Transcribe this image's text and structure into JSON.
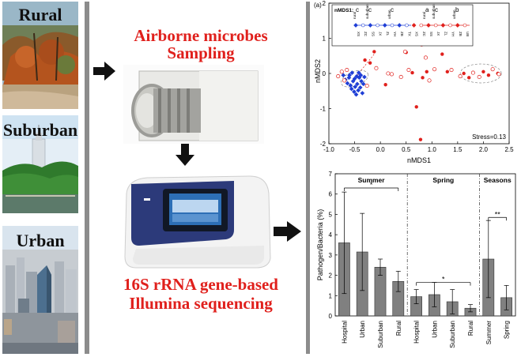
{
  "left": {
    "rural": "Rural",
    "suburban": "Suburban",
    "urban": "Urban"
  },
  "middle": {
    "sampling_line1": "Airborne microbes",
    "sampling_line2": "Sampling",
    "seq_line1": "16S rRNA gene-based",
    "seq_line2": "Illumina sequencing"
  },
  "colors": {
    "accent_red": "#e0201c",
    "blue": "#1f3fd6",
    "bar_grey": "#808080"
  },
  "chart_data": [
    {
      "type": "scatter",
      "panel_label": "(a)",
      "xlabel": "nMDS1",
      "ylabel": "nMDS2",
      "xlim": [
        -1.0,
        2.5
      ],
      "ylim": [
        -2,
        2
      ],
      "xticks": [
        "-1.0",
        "-0.5",
        "0.0",
        "0.5",
        "1.0",
        "1.5",
        "2.0",
        "2.5"
      ],
      "yticks": [
        "2",
        "1",
        "0",
        "-1",
        "-2"
      ],
      "annotation": "Stress=0.13",
      "legend_title": "nMDS1:",
      "legend_letters": [
        "c",
        "c",
        "c",
        "a",
        "c",
        "b"
      ],
      "legend_groups": [
        "rural",
        "suburban",
        "urban",
        "rural",
        "suburban",
        "urban"
      ],
      "legend_codes": [
        "XS",
        "ZC",
        "SS",
        "JX",
        "ZL",
        "YH",
        "ZB",
        "TX",
        "XS",
        "ZC",
        "SS",
        "JX",
        "ZL",
        "YH",
        "ZB",
        "UB"
      ],
      "series": [
        {
          "marker": "blue",
          "points": [
            [
              -0.72,
              -0.05
            ],
            [
              -0.68,
              -0.18
            ],
            [
              -0.64,
              -0.28
            ],
            [
              -0.61,
              -0.12
            ],
            [
              -0.58,
              -0.34
            ],
            [
              -0.56,
              -0.44
            ],
            [
              -0.53,
              -0.22
            ],
            [
              -0.51,
              -0.52
            ],
            [
              -0.49,
              -0.38
            ],
            [
              -0.47,
              -0.6
            ],
            [
              -0.45,
              -0.3
            ],
            [
              -0.43,
              -0.48
            ],
            [
              -0.41,
              -0.12
            ],
            [
              -0.39,
              -0.4
            ],
            [
              -0.37,
              -0.22
            ],
            [
              -0.35,
              -0.56
            ],
            [
              -0.33,
              -0.3
            ],
            [
              -0.31,
              -0.1
            ],
            [
              -0.6,
              -0.05
            ],
            [
              -0.5,
              -0.15
            ],
            [
              -0.46,
              -0.08
            ],
            [
              -0.42,
              0.02
            ],
            [
              -0.55,
              0.02
            ],
            [
              -0.38,
              -0.05
            ]
          ]
        },
        {
          "marker": "red",
          "points": [
            [
              -0.3,
              0.38
            ],
            [
              -0.2,
              0.3
            ],
            [
              -0.12,
              0.62
            ],
            [
              0.1,
              -0.32
            ],
            [
              0.5,
              0.6
            ],
            [
              0.72,
              1.18
            ],
            [
              0.8,
              0.82
            ],
            [
              0.62,
              0.02
            ],
            [
              0.82,
              -0.12
            ],
            [
              0.9,
              0.05
            ],
            [
              0.7,
              -0.95
            ],
            [
              0.78,
              -1.88
            ],
            [
              1.2,
              0.55
            ],
            [
              1.3,
              0.05
            ],
            [
              1.62,
              0.0
            ],
            [
              1.72,
              -0.12
            ],
            [
              2.0,
              0.05
            ],
            [
              2.1,
              -0.05
            ],
            [
              2.28,
              0.0
            ]
          ]
        },
        {
          "marker": "white",
          "points": [
            [
              -0.82,
              -0.08
            ],
            [
              -0.75,
              0.05
            ],
            [
              -0.7,
              -0.2
            ],
            [
              -0.65,
              0.1
            ],
            [
              -0.26,
              -0.35
            ],
            [
              -0.08,
              0.15
            ],
            [
              0.15,
              0.0
            ],
            [
              0.22,
              -0.02
            ],
            [
              0.4,
              -0.1
            ],
            [
              0.48,
              0.62
            ],
            [
              0.55,
              0.1
            ],
            [
              0.88,
              0.45
            ],
            [
              0.95,
              -0.2
            ],
            [
              1.05,
              0.12
            ],
            [
              1.38,
              0.1
            ],
            [
              1.55,
              -0.08
            ],
            [
              1.8,
              0.02
            ],
            [
              1.92,
              -0.1
            ],
            [
              2.18,
              0.12
            ],
            [
              2.3,
              -0.02
            ]
          ]
        }
      ]
    },
    {
      "type": "bar",
      "ylabel": "Pathogen/Bacteria (%)",
      "ylim": [
        0,
        7
      ],
      "yticks": [
        "0",
        "1",
        "2",
        "3",
        "4",
        "5",
        "6",
        "7"
      ],
      "categories": [
        "Hospital",
        "Urban",
        "Suburban",
        "Rural",
        "Hospital",
        "Urban",
        "Suburban",
        "Rural",
        "Summer",
        "Spring"
      ],
      "values": [
        3.6,
        3.15,
        2.4,
        1.7,
        0.95,
        1.05,
        0.7,
        0.38,
        2.8,
        0.9
      ],
      "errors": [
        2.5,
        1.9,
        0.4,
        0.5,
        0.35,
        0.6,
        0.6,
        0.18,
        1.9,
        0.6
      ],
      "groups": [
        {
          "label": "Summer",
          "start": 0,
          "end": 3
        },
        {
          "label": "Spring",
          "start": 4,
          "end": 7
        },
        {
          "label": "Seasons",
          "start": 8,
          "end": 9
        }
      ],
      "significance": [
        {
          "label": "*",
          "from": 0,
          "to": 3
        },
        {
          "label": "*",
          "from": 4,
          "to": 7
        },
        {
          "label": "**",
          "from": 8,
          "to": 9
        }
      ]
    }
  ]
}
